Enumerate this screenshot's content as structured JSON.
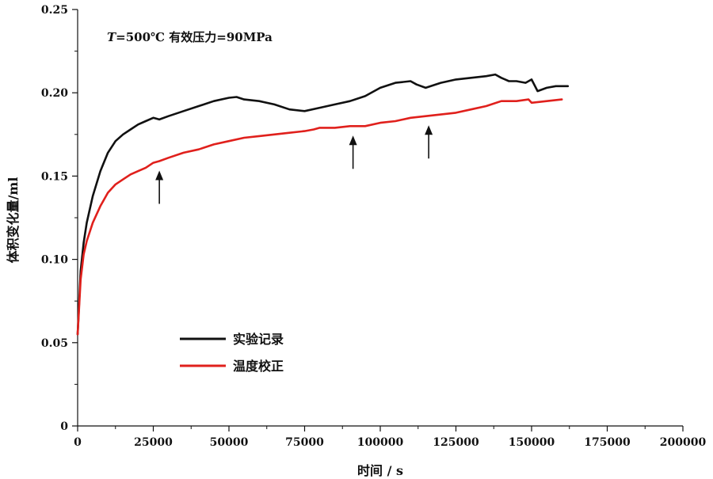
{
  "chart_data": {
    "type": "line",
    "title": "",
    "annotation": {
      "var": "T",
      "text": "=500℃  有效压力=90MPa"
    },
    "xlabel": "时间 / s",
    "ylabel": "体积变化量/ml",
    "xlim": [
      0,
      200000
    ],
    "ylim": [
      0,
      0.25
    ],
    "x_ticks": [
      0,
      25000,
      50000,
      75000,
      100000,
      125000,
      150000,
      175000,
      200000
    ],
    "y_ticks": [
      0,
      0.05,
      0.1,
      0.15,
      0.2,
      0.25
    ],
    "y_tick_labels": [
      "0",
      "0.05",
      "0.10",
      "0.15",
      "0.20",
      "0.25"
    ],
    "grid": false,
    "legend": "lower-left",
    "series": [
      {
        "name": "实验记录",
        "color": "#111111",
        "points": [
          [
            0,
            0.055
          ],
          [
            1000,
            0.093
          ],
          [
            2000,
            0.11
          ],
          [
            3000,
            0.122
          ],
          [
            5000,
            0.138
          ],
          [
            7500,
            0.153
          ],
          [
            10000,
            0.164
          ],
          [
            12500,
            0.171
          ],
          [
            15000,
            0.175
          ],
          [
            17500,
            0.178
          ],
          [
            20000,
            0.181
          ],
          [
            22500,
            0.183
          ],
          [
            25000,
            0.185
          ],
          [
            27000,
            0.184
          ],
          [
            30000,
            0.186
          ],
          [
            35000,
            0.189
          ],
          [
            40000,
            0.192
          ],
          [
            45000,
            0.195
          ],
          [
            50000,
            0.197
          ],
          [
            52500,
            0.1975
          ],
          [
            55000,
            0.196
          ],
          [
            60000,
            0.195
          ],
          [
            65000,
            0.193
          ],
          [
            70000,
            0.19
          ],
          [
            75000,
            0.189
          ],
          [
            80000,
            0.191
          ],
          [
            85000,
            0.193
          ],
          [
            90000,
            0.195
          ],
          [
            95000,
            0.198
          ],
          [
            100000,
            0.203
          ],
          [
            105000,
            0.206
          ],
          [
            110000,
            0.207
          ],
          [
            112000,
            0.205
          ],
          [
            115000,
            0.203
          ],
          [
            120000,
            0.206
          ],
          [
            125000,
            0.208
          ],
          [
            130000,
            0.209
          ],
          [
            135000,
            0.21
          ],
          [
            138000,
            0.211
          ],
          [
            140000,
            0.209
          ],
          [
            142500,
            0.207
          ],
          [
            145000,
            0.207
          ],
          [
            148000,
            0.206
          ],
          [
            150000,
            0.208
          ],
          [
            152000,
            0.201
          ],
          [
            155000,
            0.203
          ],
          [
            158000,
            0.204
          ],
          [
            162000,
            0.204
          ]
        ]
      },
      {
        "name": "温度校正",
        "color": "#e0201c",
        "points": [
          [
            0,
            0.055
          ],
          [
            1000,
            0.088
          ],
          [
            2000,
            0.103
          ],
          [
            3000,
            0.111
          ],
          [
            5000,
            0.122
          ],
          [
            7500,
            0.132
          ],
          [
            10000,
            0.14
          ],
          [
            12500,
            0.145
          ],
          [
            15000,
            0.148
          ],
          [
            17500,
            0.151
          ],
          [
            20000,
            0.153
          ],
          [
            22500,
            0.155
          ],
          [
            25000,
            0.158
          ],
          [
            27000,
            0.159
          ],
          [
            30000,
            0.161
          ],
          [
            35000,
            0.164
          ],
          [
            40000,
            0.166
          ],
          [
            45000,
            0.169
          ],
          [
            50000,
            0.171
          ],
          [
            55000,
            0.173
          ],
          [
            60000,
            0.174
          ],
          [
            65000,
            0.175
          ],
          [
            70000,
            0.176
          ],
          [
            75000,
            0.177
          ],
          [
            78000,
            0.178
          ],
          [
            80000,
            0.179
          ],
          [
            85000,
            0.179
          ],
          [
            90000,
            0.18
          ],
          [
            95000,
            0.18
          ],
          [
            100000,
            0.182
          ],
          [
            105000,
            0.183
          ],
          [
            110000,
            0.185
          ],
          [
            115000,
            0.186
          ],
          [
            120000,
            0.187
          ],
          [
            125000,
            0.188
          ],
          [
            130000,
            0.19
          ],
          [
            135000,
            0.192
          ],
          [
            140000,
            0.195
          ],
          [
            145000,
            0.195
          ],
          [
            149000,
            0.196
          ],
          [
            150000,
            0.194
          ],
          [
            155000,
            0.195
          ],
          [
            160000,
            0.196
          ]
        ]
      }
    ],
    "arrows_at_x": [
      27000,
      91000,
      116000
    ]
  }
}
